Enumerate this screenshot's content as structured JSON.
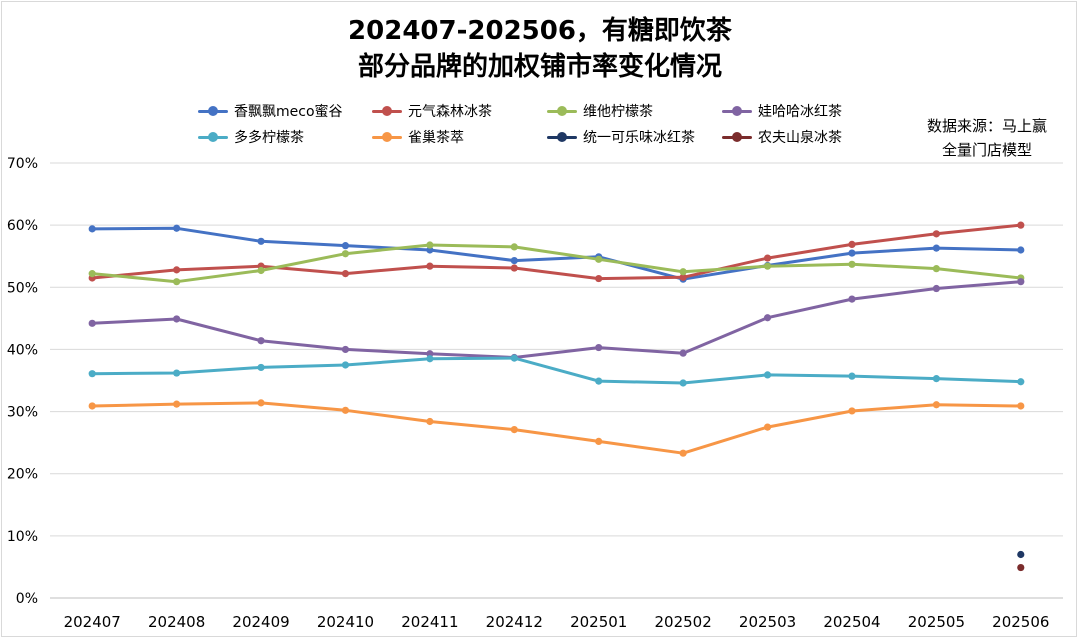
{
  "chart_data": {
    "type": "line",
    "title": "202407-202506，有糖即饮茶",
    "subtitle": "部分品牌的加权铺市率变化情况",
    "source_line1": "数据来源：马上赢",
    "source_line2": "全量门店模型",
    "x": [
      "202407",
      "202408",
      "202409",
      "202410",
      "202411",
      "202412",
      "202501",
      "202502",
      "202503",
      "202504",
      "202505",
      "202506"
    ],
    "ylim": [
      0,
      70
    ],
    "yticks": [
      "0%",
      "10%",
      "20%",
      "30%",
      "40%",
      "50%",
      "60%",
      "70%"
    ],
    "grid": true,
    "legend_position": "top",
    "series": [
      {
        "name": "香飘飘meco蜜谷",
        "color": "#4472c4",
        "values": [
          59.4,
          59.5,
          57.4,
          56.7,
          56.0,
          54.3,
          54.9,
          51.3,
          53.5,
          55.5,
          56.3,
          56.0
        ]
      },
      {
        "name": "元气森林冰茶",
        "color": "#c0504d",
        "values": [
          51.5,
          52.8,
          53.4,
          52.2,
          53.4,
          53.1,
          51.4,
          51.6,
          54.7,
          56.9,
          58.6,
          60.0
        ]
      },
      {
        "name": "维他柠檬茶",
        "color": "#9bbb59",
        "values": [
          52.2,
          50.9,
          52.7,
          55.4,
          56.8,
          56.5,
          54.5,
          52.5,
          53.4,
          53.7,
          53.0,
          51.5
        ]
      },
      {
        "name": "娃哈哈冰红茶",
        "color": "#8064a2",
        "values": [
          44.2,
          44.9,
          41.4,
          40.0,
          39.3,
          38.7,
          40.3,
          39.4,
          45.1,
          48.1,
          49.8,
          50.9
        ]
      },
      {
        "name": "多多柠檬茶",
        "color": "#4bacc6",
        "values": [
          36.1,
          36.2,
          37.1,
          37.5,
          38.5,
          38.6,
          34.9,
          34.6,
          35.9,
          35.7,
          35.3,
          34.8
        ]
      },
      {
        "name": "雀巢茶萃",
        "color": "#f79646",
        "values": [
          30.9,
          31.2,
          31.4,
          30.2,
          28.4,
          27.1,
          25.2,
          23.3,
          27.5,
          30.1,
          31.1,
          30.9
        ]
      },
      {
        "name": "统一可乐味冰红茶",
        "color": "#1f3864",
        "values": [
          null,
          null,
          null,
          null,
          null,
          null,
          null,
          null,
          null,
          null,
          null,
          7.0
        ]
      },
      {
        "name": "农夫山泉冰茶",
        "color": "#7b2c2c",
        "values": [
          null,
          null,
          null,
          null,
          null,
          null,
          null,
          null,
          null,
          null,
          null,
          4.9
        ]
      }
    ]
  }
}
